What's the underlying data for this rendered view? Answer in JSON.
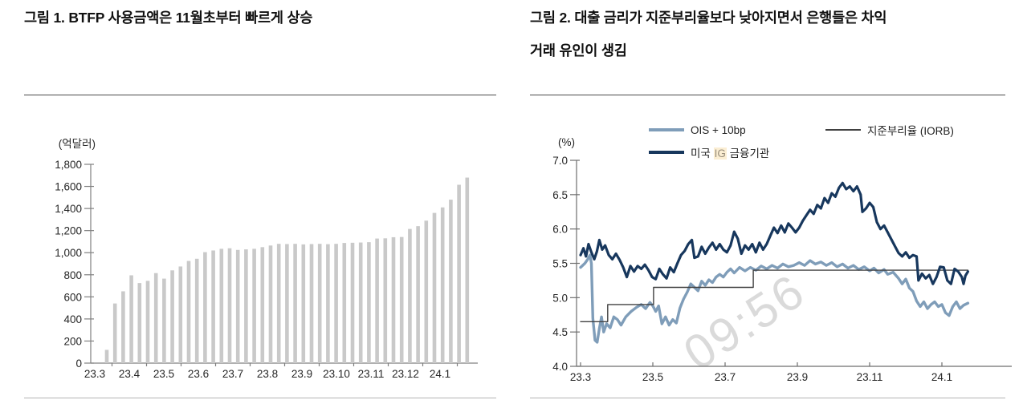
{
  "page": {
    "background": "#ffffff"
  },
  "chart_data": [
    {
      "type": "bar",
      "title": "그림 1. BTFP 사용금액은 11월초부터 빠르게 상승",
      "unit_label": "(억달러)",
      "ylabel": "억달러",
      "ylim": [
        0,
        1800
      ],
      "y_step": 200,
      "y_tick_labels": [
        "1,800",
        "1,600",
        "1,400",
        "1,200",
        "1,000",
        "800",
        "600",
        "400",
        "200",
        "0"
      ],
      "x_tick_labels": [
        "23.3",
        "23.4",
        "23.5",
        "23.6",
        "23.7",
        "23.8",
        "23.9",
        "23.10",
        "23.11",
        "23.12",
        "24.1"
      ],
      "frequency": "weekly",
      "values": [
        120,
        540,
        650,
        795,
        725,
        745,
        815,
        765,
        840,
        875,
        925,
        945,
        1005,
        1020,
        1035,
        1040,
        1025,
        1030,
        1035,
        1050,
        1065,
        1080,
        1078,
        1080,
        1075,
        1078,
        1080,
        1077,
        1080,
        1088,
        1090,
        1092,
        1095,
        1128,
        1130,
        1140,
        1142,
        1215,
        1240,
        1290,
        1360,
        1410,
        1480,
        1615,
        1680
      ],
      "bar_color": "#c9c9c9",
      "axis_color": "#808080",
      "grid": false
    },
    {
      "type": "line",
      "title_line1": "그림 2. 대출 금리가 지준부리율보다 낮아지면서 은행들은 차익",
      "title_line2": "거래 유인이 생김",
      "unit_label": "(%)",
      "ylabel": "%",
      "ylim": [
        4.0,
        7.0
      ],
      "y_step": 0.5,
      "y_tick_labels": [
        "7.0",
        "6.5",
        "6.0",
        "5.5",
        "5.0",
        "4.5",
        "4.0"
      ],
      "x_tick_labels": [
        "23.3",
        "23.5",
        "23.7",
        "23.9",
        "23.11",
        "24.1"
      ],
      "months_per_tick": 2,
      "x_range_months": [
        0,
        10.72
      ],
      "legend_position": "top",
      "grid": false,
      "watermark": "09:56",
      "legend_ig": {
        "pre": "미국 ",
        "highlight": "IG",
        "post": " 금융기관"
      },
      "series": [
        {
          "name": "OIS + 10bp",
          "color": "#7f9db9",
          "width": 3.4,
          "points": [
            [
              0,
              5.44
            ],
            [
              0.12,
              5.5
            ],
            [
              0.2,
              5.56
            ],
            [
              0.26,
              5.62
            ],
            [
              0.3,
              5.5
            ],
            [
              0.34,
              4.7
            ],
            [
              0.4,
              4.38
            ],
            [
              0.46,
              4.35
            ],
            [
              0.52,
              4.55
            ],
            [
              0.58,
              4.72
            ],
            [
              0.64,
              4.5
            ],
            [
              0.72,
              4.62
            ],
            [
              0.82,
              4.56
            ],
            [
              0.92,
              4.72
            ],
            [
              1.02,
              4.68
            ],
            [
              1.12,
              4.6
            ],
            [
              1.25,
              4.72
            ],
            [
              1.4,
              4.8
            ],
            [
              1.55,
              4.86
            ],
            [
              1.68,
              4.9
            ],
            [
              1.8,
              4.84
            ],
            [
              1.92,
              4.93
            ],
            [
              2.0,
              4.88
            ],
            [
              2.08,
              4.8
            ],
            [
              2.16,
              4.88
            ],
            [
              2.25,
              4.62
            ],
            [
              2.35,
              4.72
            ],
            [
              2.45,
              4.6
            ],
            [
              2.55,
              4.68
            ],
            [
              2.65,
              4.63
            ],
            [
              2.75,
              4.85
            ],
            [
              2.85,
              4.98
            ],
            [
              2.95,
              5.08
            ],
            [
              3.05,
              5.2
            ],
            [
              3.15,
              5.15
            ],
            [
              3.25,
              5.1
            ],
            [
              3.35,
              5.24
            ],
            [
              3.45,
              5.18
            ],
            [
              3.55,
              5.26
            ],
            [
              3.65,
              5.22
            ],
            [
              3.75,
              5.3
            ],
            [
              3.85,
              5.34
            ],
            [
              3.95,
              5.3
            ],
            [
              4.05,
              5.37
            ],
            [
              4.15,
              5.42
            ],
            [
              4.25,
              5.36
            ],
            [
              4.4,
              5.44
            ],
            [
              4.55,
              5.39
            ],
            [
              4.7,
              5.44
            ],
            [
              4.85,
              5.4
            ],
            [
              5.0,
              5.46
            ],
            [
              5.15,
              5.42
            ],
            [
              5.3,
              5.47
            ],
            [
              5.45,
              5.43
            ],
            [
              5.6,
              5.49
            ],
            [
              5.75,
              5.45
            ],
            [
              5.9,
              5.47
            ],
            [
              6.05,
              5.51
            ],
            [
              6.2,
              5.47
            ],
            [
              6.35,
              5.54
            ],
            [
              6.5,
              5.49
            ],
            [
              6.65,
              5.52
            ],
            [
              6.8,
              5.47
            ],
            [
              6.95,
              5.51
            ],
            [
              7.1,
              5.45
            ],
            [
              7.25,
              5.49
            ],
            [
              7.4,
              5.43
            ],
            [
              7.55,
              5.47
            ],
            [
              7.7,
              5.41
            ],
            [
              7.85,
              5.45
            ],
            [
              8.0,
              5.39
            ],
            [
              8.12,
              5.43
            ],
            [
              8.25,
              5.36
            ],
            [
              8.4,
              5.41
            ],
            [
              8.5,
              5.34
            ],
            [
              8.65,
              5.37
            ],
            [
              8.8,
              5.28
            ],
            [
              8.9,
              5.2
            ],
            [
              9.0,
              5.27
            ],
            [
              9.1,
              5.14
            ],
            [
              9.2,
              5.09
            ],
            [
              9.3,
              4.95
            ],
            [
              9.4,
              4.87
            ],
            [
              9.5,
              4.94
            ],
            [
              9.6,
              4.84
            ],
            [
              9.7,
              4.9
            ],
            [
              9.8,
              4.94
            ],
            [
              9.9,
              4.87
            ],
            [
              10.0,
              4.9
            ],
            [
              10.1,
              4.78
            ],
            [
              10.2,
              4.74
            ],
            [
              10.3,
              4.87
            ],
            [
              10.4,
              4.94
            ],
            [
              10.5,
              4.84
            ],
            [
              10.6,
              4.89
            ],
            [
              10.72,
              4.92
            ]
          ]
        },
        {
          "name": "지준부리율 (IORB)",
          "color": "#404040",
          "width": 1.4,
          "points": [
            [
              0,
              4.65
            ],
            [
              0.75,
              4.65
            ],
            [
              0.75,
              4.9
            ],
            [
              2.02,
              4.9
            ],
            [
              2.02,
              5.15
            ],
            [
              4.78,
              5.15
            ],
            [
              4.78,
              5.4
            ],
            [
              10.72,
              5.4
            ]
          ]
        },
        {
          "name": "미국 IG 금융기관",
          "color": "#17375d",
          "width": 3.2,
          "points": [
            [
              0,
              5.62
            ],
            [
              0.08,
              5.72
            ],
            [
              0.15,
              5.6
            ],
            [
              0.22,
              5.78
            ],
            [
              0.3,
              5.66
            ],
            [
              0.38,
              5.56
            ],
            [
              0.45,
              5.67
            ],
            [
              0.52,
              5.84
            ],
            [
              0.6,
              5.7
            ],
            [
              0.68,
              5.76
            ],
            [
              0.78,
              5.62
            ],
            [
              0.88,
              5.56
            ],
            [
              0.98,
              5.64
            ],
            [
              1.08,
              5.55
            ],
            [
              1.18,
              5.44
            ],
            [
              1.28,
              5.3
            ],
            [
              1.38,
              5.46
            ],
            [
              1.48,
              5.38
            ],
            [
              1.58,
              5.46
            ],
            [
              1.68,
              5.42
            ],
            [
              1.78,
              5.48
            ],
            [
              1.88,
              5.4
            ],
            [
              1.98,
              5.3
            ],
            [
              2.08,
              5.27
            ],
            [
              2.18,
              5.42
            ],
            [
              2.28,
              5.34
            ],
            [
              2.38,
              5.28
            ],
            [
              2.48,
              5.44
            ],
            [
              2.58,
              5.37
            ],
            [
              2.68,
              5.5
            ],
            [
              2.78,
              5.62
            ],
            [
              2.88,
              5.68
            ],
            [
              2.98,
              5.78
            ],
            [
              3.08,
              5.84
            ],
            [
              3.15,
              5.58
            ],
            [
              3.25,
              5.6
            ],
            [
              3.35,
              5.74
            ],
            [
              3.45,
              5.64
            ],
            [
              3.55,
              5.73
            ],
            [
              3.65,
              5.8
            ],
            [
              3.75,
              5.7
            ],
            [
              3.85,
              5.78
            ],
            [
              3.95,
              5.7
            ],
            [
              4.05,
              5.66
            ],
            [
              4.15,
              5.76
            ],
            [
              4.25,
              5.96
            ],
            [
              4.35,
              5.86
            ],
            [
              4.45,
              5.64
            ],
            [
              4.55,
              5.76
            ],
            [
              4.65,
              5.7
            ],
            [
              4.75,
              5.78
            ],
            [
              4.85,
              5.66
            ],
            [
              4.95,
              5.8
            ],
            [
              5.05,
              5.7
            ],
            [
              5.15,
              5.78
            ],
            [
              5.25,
              5.9
            ],
            [
              5.35,
              6.02
            ],
            [
              5.45,
              5.94
            ],
            [
              5.55,
              6.05
            ],
            [
              5.65,
              5.95
            ],
            [
              5.75,
              6.08
            ],
            [
              5.85,
              6.02
            ],
            [
              5.95,
              5.95
            ],
            [
              6.05,
              6.02
            ],
            [
              6.15,
              6.12
            ],
            [
              6.25,
              6.2
            ],
            [
              6.35,
              6.28
            ],
            [
              6.45,
              6.22
            ],
            [
              6.55,
              6.35
            ],
            [
              6.65,
              6.3
            ],
            [
              6.75,
              6.45
            ],
            [
              6.85,
              6.38
            ],
            [
              6.95,
              6.52
            ],
            [
              7.05,
              6.47
            ],
            [
              7.15,
              6.6
            ],
            [
              7.25,
              6.67
            ],
            [
              7.35,
              6.58
            ],
            [
              7.45,
              6.62
            ],
            [
              7.55,
              6.55
            ],
            [
              7.65,
              6.62
            ],
            [
              7.75,
              6.5
            ],
            [
              7.8,
              6.25
            ],
            [
              7.9,
              6.3
            ],
            [
              8.0,
              6.38
            ],
            [
              8.1,
              6.32
            ],
            [
              8.2,
              6.1
            ],
            [
              8.3,
              6.0
            ],
            [
              8.4,
              6.05
            ],
            [
              8.5,
              5.95
            ],
            [
              8.6,
              5.85
            ],
            [
              8.7,
              5.75
            ],
            [
              8.8,
              5.65
            ],
            [
              8.9,
              5.6
            ],
            [
              9.0,
              5.66
            ],
            [
              9.1,
              5.58
            ],
            [
              9.2,
              5.62
            ],
            [
              9.3,
              5.6
            ],
            [
              9.35,
              5.25
            ],
            [
              9.45,
              5.35
            ],
            [
              9.55,
              5.28
            ],
            [
              9.65,
              5.33
            ],
            [
              9.75,
              5.2
            ],
            [
              9.85,
              5.3
            ],
            [
              9.95,
              5.45
            ],
            [
              10.05,
              5.44
            ],
            [
              10.15,
              5.25
            ],
            [
              10.25,
              5.2
            ],
            [
              10.35,
              5.42
            ],
            [
              10.45,
              5.38
            ],
            [
              10.55,
              5.3
            ],
            [
              10.6,
              5.2
            ],
            [
              10.65,
              5.32
            ],
            [
              10.72,
              5.38
            ]
          ]
        }
      ]
    }
  ]
}
